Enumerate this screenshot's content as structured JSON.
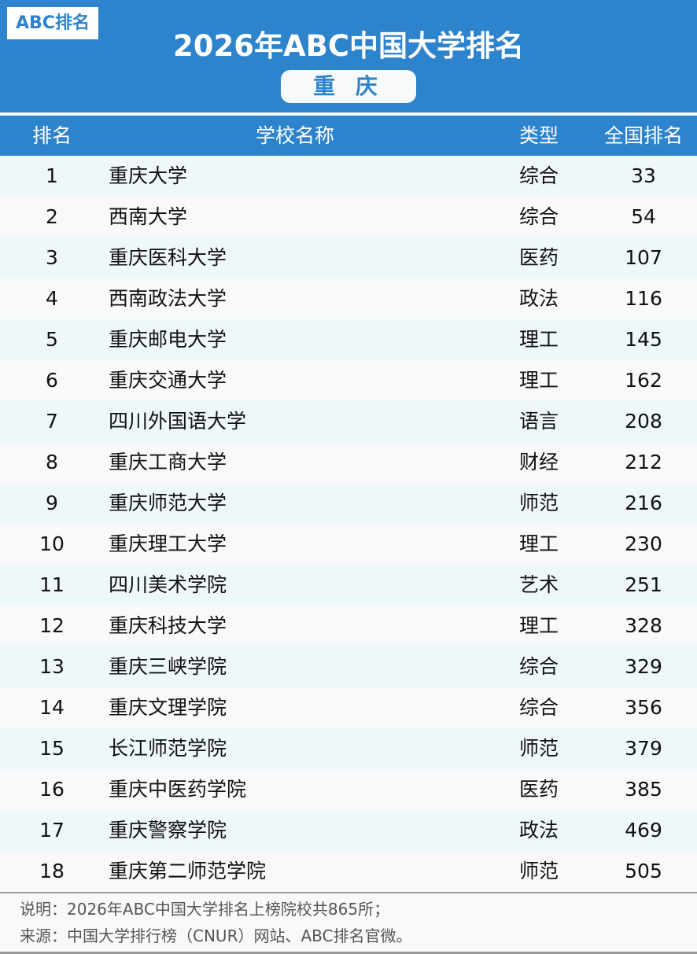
{
  "header": {
    "logo": "ABC排名",
    "title": "2026年ABC中国大学排名",
    "region": "重 庆"
  },
  "colors": {
    "accent": "#2d83cc",
    "row_alt": "#eef7fa",
    "row_base": "#f7f9fb"
  },
  "table": {
    "columns": [
      "排名",
      "学校名称",
      "类型",
      "全国排名"
    ],
    "rows": [
      [
        "1",
        "重庆大学",
        "综合",
        "33"
      ],
      [
        "2",
        "西南大学",
        "综合",
        "54"
      ],
      [
        "3",
        "重庆医科大学",
        "医药",
        "107"
      ],
      [
        "4",
        "西南政法大学",
        "政法",
        "116"
      ],
      [
        "5",
        "重庆邮电大学",
        "理工",
        "145"
      ],
      [
        "6",
        "重庆交通大学",
        "理工",
        "162"
      ],
      [
        "7",
        "四川外国语大学",
        "语言",
        "208"
      ],
      [
        "8",
        "重庆工商大学",
        "财经",
        "212"
      ],
      [
        "9",
        "重庆师范大学",
        "师范",
        "216"
      ],
      [
        "10",
        "重庆理工大学",
        "理工",
        "230"
      ],
      [
        "11",
        "四川美术学院",
        "艺术",
        "251"
      ],
      [
        "12",
        "重庆科技大学",
        "理工",
        "328"
      ],
      [
        "13",
        "重庆三峡学院",
        "综合",
        "329"
      ],
      [
        "14",
        "重庆文理学院",
        "综合",
        "356"
      ],
      [
        "15",
        "长江师范学院",
        "师范",
        "379"
      ],
      [
        "16",
        "重庆中医药学院",
        "医药",
        "385"
      ],
      [
        "17",
        "重庆警察学院",
        "政法",
        "469"
      ],
      [
        "18",
        "重庆第二师范学院",
        "师范",
        "505"
      ]
    ]
  },
  "footer": {
    "note": "说明：2026年ABC中国大学排名上榜院校共865所；",
    "source": "来源：中国大学排行榜（CNUR）网站、ABC排名官微。"
  }
}
